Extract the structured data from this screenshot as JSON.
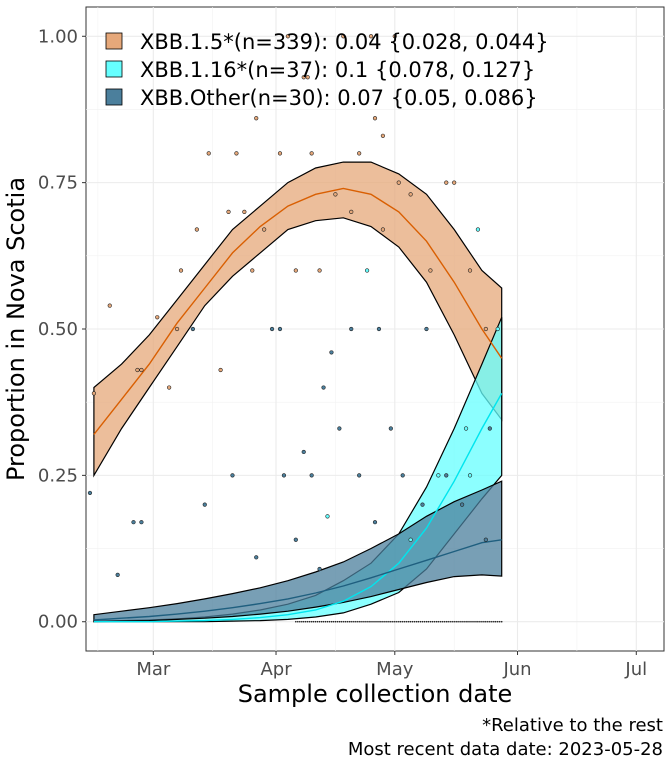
{
  "chart_data": {
    "type": "line",
    "title": "",
    "xlabel": "Sample collection date",
    "ylabel": "Proportion in Nova Scotia",
    "x_axis": {
      "type": "date",
      "range": [
        "2023-02-12",
        "2023-07-08"
      ],
      "ticks": [
        {
          "date": "2023-03-01",
          "label": "Mar"
        },
        {
          "date": "2023-04-01",
          "label": "Apr"
        },
        {
          "date": "2023-05-01",
          "label": "May"
        },
        {
          "date": "2023-06-01",
          "label": "Jun"
        },
        {
          "date": "2023-07-01",
          "label": "Jul"
        }
      ]
    },
    "y_axis": {
      "range": [
        -0.05,
        1.05
      ],
      "ticks": [
        0,
        0.25,
        0.5,
        0.75,
        1.0
      ],
      "tick_labels": [
        "0.00",
        "0.25",
        "0.50",
        "0.75",
        "1.00"
      ]
    },
    "grid": true,
    "legend_position": "top-left",
    "x": [
      "2023-02-14",
      "2023-02-21",
      "2023-02-28",
      "2023-03-07",
      "2023-03-14",
      "2023-03-21",
      "2023-03-28",
      "2023-04-04",
      "2023-04-11",
      "2023-04-18",
      "2023-04-25",
      "2023-05-02",
      "2023-05-09",
      "2023-05-16",
      "2023-05-23",
      "2023-05-28"
    ],
    "series": [
      {
        "name": "XBB.1.5*(n=339): 0.04 {0.028, 0.044}",
        "color": "#d95f02",
        "fill": "#e6a87a",
        "fit": [
          0.32,
          0.38,
          0.44,
          0.51,
          0.57,
          0.63,
          0.675,
          0.71,
          0.73,
          0.74,
          0.73,
          0.7,
          0.65,
          0.58,
          0.5,
          0.45
        ],
        "lower": [
          0.25,
          0.33,
          0.4,
          0.47,
          0.54,
          0.59,
          0.63,
          0.67,
          0.685,
          0.69,
          0.675,
          0.64,
          0.58,
          0.49,
          0.39,
          0.345
        ],
        "upper": [
          0.4,
          0.44,
          0.49,
          0.55,
          0.61,
          0.67,
          0.71,
          0.75,
          0.775,
          0.785,
          0.785,
          0.765,
          0.73,
          0.67,
          0.6,
          0.57
        ]
      },
      {
        "name": "XBB.1.16*(n=37): 0.1 {0.078, 0.127}",
        "color": "#00e5ee",
        "fill": "#66ffff",
        "fit": [
          0.0,
          0.0,
          0.0,
          0.001,
          0.002,
          0.004,
          0.007,
          0.012,
          0.02,
          0.035,
          0.06,
          0.1,
          0.16,
          0.24,
          0.33,
          0.39
        ],
        "lower": [
          0.0,
          0.0,
          0.0,
          0.0,
          0.0,
          0.001,
          0.002,
          0.004,
          0.008,
          0.015,
          0.03,
          0.05,
          0.09,
          0.15,
          0.21,
          0.25
        ],
        "upper": [
          0.001,
          0.002,
          0.003,
          0.005,
          0.008,
          0.013,
          0.02,
          0.03,
          0.045,
          0.07,
          0.1,
          0.15,
          0.23,
          0.33,
          0.44,
          0.52
        ]
      },
      {
        "name": "XBB.Other(n=30): 0.07 {0.05, 0.086}",
        "color": "#1f5f7f",
        "fill": "#4b7f9c",
        "fit": [
          0.003,
          0.006,
          0.009,
          0.013,
          0.018,
          0.024,
          0.031,
          0.039,
          0.049,
          0.061,
          0.075,
          0.09,
          0.105,
          0.12,
          0.135,
          0.14
        ],
        "lower": [
          0.0,
          0.001,
          0.002,
          0.004,
          0.006,
          0.009,
          0.013,
          0.018,
          0.025,
          0.033,
          0.043,
          0.055,
          0.067,
          0.077,
          0.08,
          0.078
        ],
        "upper": [
          0.012,
          0.018,
          0.024,
          0.031,
          0.039,
          0.048,
          0.058,
          0.07,
          0.085,
          0.102,
          0.125,
          0.15,
          0.18,
          0.205,
          0.225,
          0.24
        ]
      }
    ],
    "observations": [
      {
        "series": 0,
        "x": "2023-02-14",
        "y": 0.39
      },
      {
        "series": 0,
        "x": "2023-02-18",
        "y": 0.54
      },
      {
        "series": 0,
        "x": "2023-02-25",
        "y": 0.43
      },
      {
        "series": 0,
        "x": "2023-02-26",
        "y": 0.43
      },
      {
        "series": 0,
        "x": "2023-03-02",
        "y": 0.52
      },
      {
        "series": 0,
        "x": "2023-03-05",
        "y": 0.4
      },
      {
        "series": 0,
        "x": "2023-03-07",
        "y": 0.5
      },
      {
        "series": 0,
        "x": "2023-03-08",
        "y": 0.6
      },
      {
        "series": 0,
        "x": "2023-03-12",
        "y": 0.67
      },
      {
        "series": 0,
        "x": "2023-03-15",
        "y": 0.8
      },
      {
        "series": 0,
        "x": "2023-03-20",
        "y": 0.7
      },
      {
        "series": 0,
        "x": "2023-03-22",
        "y": 0.8
      },
      {
        "series": 0,
        "x": "2023-03-24",
        "y": 0.7
      },
      {
        "series": 0,
        "x": "2023-03-26",
        "y": 0.6
      },
      {
        "series": 0,
        "x": "2023-03-29",
        "y": 0.67
      },
      {
        "series": 0,
        "x": "2023-04-02",
        "y": 0.8
      },
      {
        "series": 0,
        "x": "2023-04-06",
        "y": 0.6
      },
      {
        "series": 0,
        "x": "2023-04-10",
        "y": 0.8
      },
      {
        "series": 0,
        "x": "2023-04-12",
        "y": 0.6
      },
      {
        "series": 0,
        "x": "2023-04-16",
        "y": 0.73
      },
      {
        "series": 0,
        "x": "2023-04-20",
        "y": 0.7
      },
      {
        "series": 0,
        "x": "2023-04-22",
        "y": 0.8
      },
      {
        "series": 0,
        "x": "2023-04-26",
        "y": 0.86
      },
      {
        "series": 0,
        "x": "2023-04-28",
        "y": 0.67
      },
      {
        "series": 0,
        "x": "2023-05-02",
        "y": 0.75
      },
      {
        "series": 0,
        "x": "2023-05-05",
        "y": 0.73
      },
      {
        "series": 0,
        "x": "2023-05-10",
        "y": 0.6
      },
      {
        "series": 0,
        "x": "2023-05-14",
        "y": 0.75
      },
      {
        "series": 0,
        "x": "2023-05-16",
        "y": 0.75
      },
      {
        "series": 0,
        "x": "2023-05-20",
        "y": 0.6
      },
      {
        "series": 0,
        "x": "2023-05-24",
        "y": 0.5
      },
      {
        "series": 0,
        "x": "2023-03-18",
        "y": 0.43
      },
      {
        "series": 0,
        "x": "2023-04-25",
        "y": 1.0
      },
      {
        "series": 0,
        "x": "2023-04-18",
        "y": 1.0
      },
      {
        "series": 0,
        "x": "2023-05-01",
        "y": 1.0
      },
      {
        "series": 0,
        "x": "2023-04-04",
        "y": 1.0
      },
      {
        "series": 0,
        "x": "2023-04-08",
        "y": 0.93
      },
      {
        "series": 0,
        "x": "2023-04-09",
        "y": 0.93
      },
      {
        "series": 0,
        "x": "2023-04-28",
        "y": 0.83
      },
      {
        "series": 0,
        "x": "2023-03-27",
        "y": 0.86
      },
      {
        "series": 1,
        "x": "2023-04-24",
        "y": 0.6
      },
      {
        "series": 1,
        "x": "2023-05-05",
        "y": 0.14
      },
      {
        "series": 1,
        "x": "2023-05-12",
        "y": 0.25
      },
      {
        "series": 1,
        "x": "2023-05-19",
        "y": 0.33
      },
      {
        "series": 1,
        "x": "2023-05-27",
        "y": 0.5
      },
      {
        "series": 1,
        "x": "2023-05-22",
        "y": 0.67
      },
      {
        "series": 1,
        "x": "2023-04-14",
        "y": 0.18
      },
      {
        "series": 1,
        "x": "2023-05-20",
        "y": 0.25
      },
      {
        "series": 2,
        "x": "2023-02-13",
        "y": 0.22
      },
      {
        "series": 2,
        "x": "2023-02-20",
        "y": 0.08
      },
      {
        "series": 2,
        "x": "2023-02-24",
        "y": 0.17
      },
      {
        "series": 2,
        "x": "2023-02-26",
        "y": 0.17
      },
      {
        "series": 2,
        "x": "2023-03-14",
        "y": 0.2
      },
      {
        "series": 2,
        "x": "2023-03-27",
        "y": 0.11
      },
      {
        "series": 2,
        "x": "2023-04-03",
        "y": 0.25
      },
      {
        "series": 2,
        "x": "2023-04-08",
        "y": 0.29
      },
      {
        "series": 2,
        "x": "2023-04-10",
        "y": 0.25
      },
      {
        "series": 2,
        "x": "2023-04-12",
        "y": 0.09
      },
      {
        "series": 2,
        "x": "2023-04-17",
        "y": 0.33
      },
      {
        "series": 2,
        "x": "2023-04-22",
        "y": 0.25
      },
      {
        "series": 2,
        "x": "2023-04-26",
        "y": 0.17
      },
      {
        "series": 2,
        "x": "2023-04-30",
        "y": 0.33
      },
      {
        "series": 2,
        "x": "2023-05-03",
        "y": 0.25
      },
      {
        "series": 2,
        "x": "2023-05-08",
        "y": 0.2
      },
      {
        "series": 2,
        "x": "2023-05-14",
        "y": 0.25
      },
      {
        "series": 2,
        "x": "2023-05-18",
        "y": 0.2
      },
      {
        "series": 2,
        "x": "2023-05-25",
        "y": 0.33
      },
      {
        "series": 2,
        "x": "2023-04-20",
        "y": 0.5
      },
      {
        "series": 2,
        "x": "2023-03-31",
        "y": 0.5
      },
      {
        "series": 2,
        "x": "2023-04-02",
        "y": 0.5
      },
      {
        "series": 2,
        "x": "2023-04-27",
        "y": 0.5
      },
      {
        "series": 2,
        "x": "2023-05-09",
        "y": 0.5
      },
      {
        "series": 2,
        "x": "2023-03-11",
        "y": 0.5
      },
      {
        "series": 2,
        "x": "2023-04-13",
        "y": 0.4
      },
      {
        "series": 2,
        "x": "2023-04-15",
        "y": 0.46
      },
      {
        "series": 2,
        "x": "2023-05-24",
        "y": 0.14
      },
      {
        "series": 2,
        "x": "2023-04-06",
        "y": 0.14
      },
      {
        "series": 2,
        "x": "2023-03-21",
        "y": 0.25
      }
    ],
    "zero_observations_range": [
      "2023-04-06",
      "2023-05-28"
    ]
  },
  "caption": {
    "line1": "*Relative to the rest",
    "line2": "Most recent data date: 2023-05-28"
  }
}
